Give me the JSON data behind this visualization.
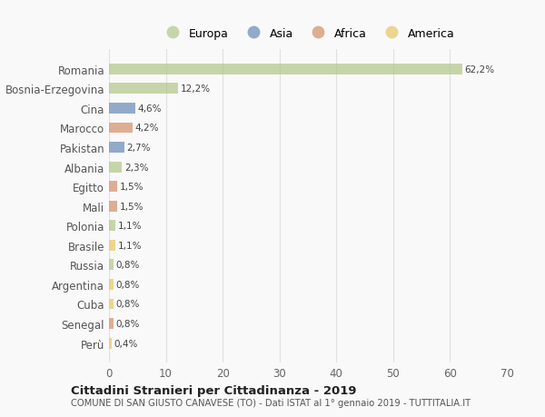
{
  "countries": [
    "Romania",
    "Bosnia-Erzegovina",
    "Cina",
    "Marocco",
    "Pakistan",
    "Albania",
    "Egitto",
    "Mali",
    "Polonia",
    "Brasile",
    "Russia",
    "Argentina",
    "Cuba",
    "Senegal",
    "Perù"
  ],
  "values": [
    62.2,
    12.2,
    4.6,
    4.2,
    2.7,
    2.3,
    1.5,
    1.5,
    1.1,
    1.1,
    0.8,
    0.8,
    0.8,
    0.8,
    0.4
  ],
  "labels": [
    "62,2%",
    "12,2%",
    "4,6%",
    "4,2%",
    "2,7%",
    "2,3%",
    "1,5%",
    "1,5%",
    "1,1%",
    "1,1%",
    "0,8%",
    "0,8%",
    "0,8%",
    "0,8%",
    "0,4%"
  ],
  "continents": [
    "Europa",
    "Europa",
    "Asia",
    "Africa",
    "Asia",
    "Europa",
    "Africa",
    "Africa",
    "Europa",
    "America",
    "Europa",
    "America",
    "America",
    "Africa",
    "America"
  ],
  "colors": {
    "Europa": "#b5c98e",
    "Asia": "#7090bb",
    "Africa": "#d4956e",
    "America": "#e8ca6a"
  },
  "legend_order": [
    "Europa",
    "Asia",
    "Africa",
    "America"
  ],
  "title": "Cittadini Stranieri per Cittadinanza - 2019",
  "subtitle": "COMUNE DI SAN GIUSTO CANAVESE (TO) - Dati ISTAT al 1° gennaio 2019 - TUTTITALIA.IT",
  "xlim": [
    0,
    70
  ],
  "xticks": [
    0,
    10,
    20,
    30,
    40,
    50,
    60,
    70
  ],
  "background_color": "#f9f9f9",
  "grid_color": "#e0e0e0",
  "bar_alpha": 0.75
}
